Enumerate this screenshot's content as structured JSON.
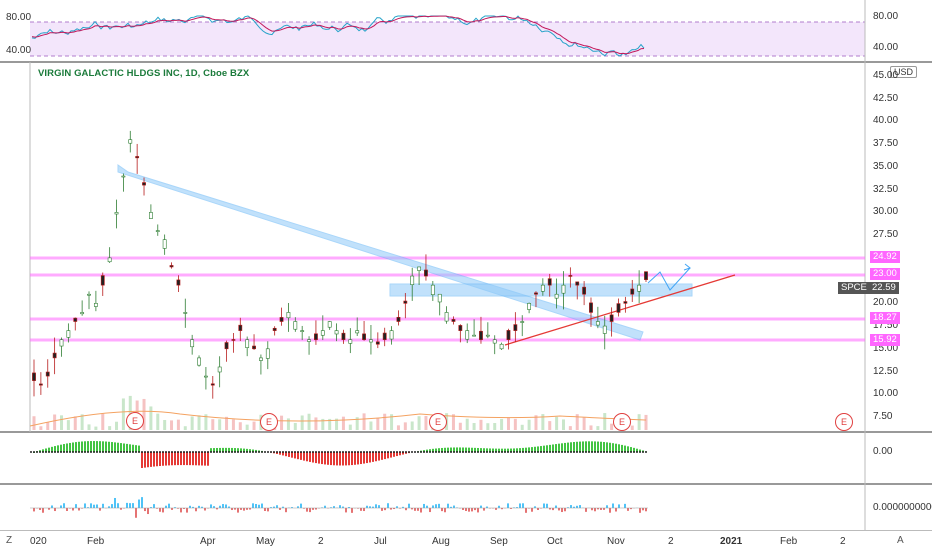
{
  "symbol_title": "VIRGIN GALACTIC HLDGS INC, 1D, Cboe BZX",
  "currency": "USD",
  "rsi": {
    "left_ticks": [
      "80.00",
      "40.00"
    ],
    "right_ticks": [
      "80.00",
      "40.00"
    ]
  },
  "price_axis": [
    "45.00",
    "42.50",
    "40.00",
    "37.50",
    "35.00",
    "32.50",
    "30.00",
    "27.50",
    "25.00",
    "20.00",
    "17.50",
    "15.00",
    "12.50",
    "10.00",
    "7.50"
  ],
  "levels": [
    {
      "label": "24.92",
      "color": "#ff66ff"
    },
    {
      "label": "23.00",
      "color": "#ff66ff"
    },
    {
      "label": "18.27",
      "color": "#ff66ff"
    },
    {
      "label": "15.92",
      "color": "#ff66ff"
    }
  ],
  "current": {
    "symbol": "SPCE",
    "price": "22.59"
  },
  "macd_tick": "0.00",
  "osc_tick": "0.0000000000",
  "x_axis": [
    "020",
    "Feb",
    "Apr",
    "May",
    "2",
    "Jul",
    "Aug",
    "Sep",
    "Oct",
    "Nov",
    "2",
    "2021",
    "Feb",
    "2"
  ],
  "earnings_label": "E",
  "corner_left": "Z",
  "corner_right": "A",
  "colors": {
    "up": "#26a69a",
    "down": "#ef5350",
    "level": "#ff66ff",
    "zone": "#90caf9",
    "trend": "#e53935"
  }
}
